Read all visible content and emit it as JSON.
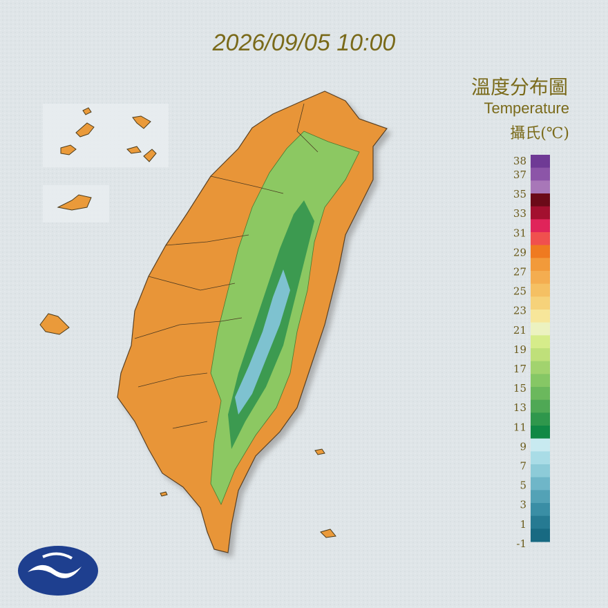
{
  "timestamp": "2026/09/05 10:00",
  "title": "溫度分布圖",
  "subtitle": "Temperature",
  "unit": "攝氏(℃)",
  "legend": {
    "labels": [
      38,
      37,
      35,
      33,
      31,
      29,
      27,
      25,
      23,
      21,
      19,
      17,
      15,
      13,
      11,
      9,
      7,
      5,
      3,
      1,
      -1
    ],
    "colors": [
      "#6f3a95",
      "#8c55a8",
      "#a877b8",
      "#6b0a18",
      "#a3102f",
      "#e0245a",
      "#f0504e",
      "#ef7a20",
      "#f29a3a",
      "#f4ad50",
      "#f5c063",
      "#f6d27a",
      "#f7e69a",
      "#ecf2c0",
      "#d6ec8a",
      "#bfe07a",
      "#a2d36e",
      "#86c765",
      "#6bb85d",
      "#4fa855",
      "#2f974c",
      "#108845",
      "#c8eaf0",
      "#a9dce6",
      "#8dcbd8",
      "#6fb6c8",
      "#53a2b6",
      "#3a8ea5",
      "#267a92",
      "#186a82"
    ]
  }
}
